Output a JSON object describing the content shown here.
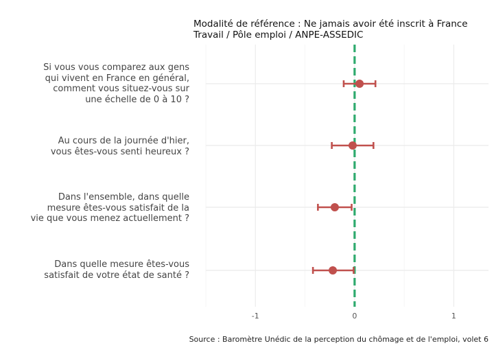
{
  "chart_data": {
    "type": "errorbar-dot",
    "title_lines": [
      "Modalité de référence : Ne jamais avoir été inscrit à France",
      "Travail / Pôle emploi / ANPE-ASSEDIC"
    ],
    "caption": "Source : Baromètre Unédic de la perception du chômage et de l'emploi, volet 6",
    "xlim": [
      -1.5,
      1.35
    ],
    "xticks": [
      -1,
      0,
      1
    ],
    "xtick_labels": [
      "-1",
      "0",
      "1"
    ],
    "reference_line": 0,
    "grid": true,
    "items": [
      {
        "label_lines": [
          "Si vous vous comparez aux gens",
          "qui vivent en France en général,",
          "comment vous situez-vous sur",
          "une échelle de 0 à 10 ?"
        ],
        "estimate": 0.05,
        "low": -0.11,
        "high": 0.21
      },
      {
        "label_lines": [
          "Au cours de la journée d'hier,",
          "vous êtes-vous senti heureux ?"
        ],
        "estimate": -0.02,
        "low": -0.23,
        "high": 0.19
      },
      {
        "label_lines": [
          "Dans l'ensemble, dans quelle",
          "mesure êtes-vous satisfait de la",
          "vie que vous menez actuellement ?"
        ],
        "estimate": -0.2,
        "low": -0.37,
        "high": -0.03
      },
      {
        "label_lines": [
          "Dans quelle mesure êtes-vous",
          "satisfait de votre état de santé ?"
        ],
        "estimate": -0.22,
        "low": -0.42,
        "high": -0.01
      }
    ],
    "colors": {
      "point": "#c0504d",
      "reference": "#2eaa6e",
      "grid": "#ebebeb"
    }
  }
}
